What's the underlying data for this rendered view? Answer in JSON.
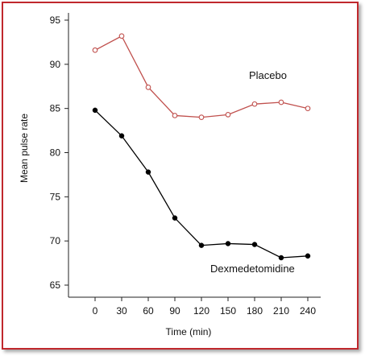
{
  "chart_data": {
    "type": "line",
    "xlabel": "Time (min)",
    "ylabel": "Mean pulse rate",
    "x": [
      0,
      30,
      60,
      90,
      120,
      150,
      180,
      210,
      240
    ],
    "xticks": [
      "0",
      "30",
      "60",
      "90",
      "120",
      "150",
      "180",
      "210",
      "240"
    ],
    "yticks": [
      "65",
      "70",
      "75",
      "80",
      "85",
      "90",
      "95"
    ],
    "ylim": [
      62.5,
      96
    ],
    "grid": false,
    "series": [
      {
        "name": "Placebo",
        "values": [
          91.6,
          93.2,
          87.4,
          84.2,
          84.0,
          84.3,
          85.5,
          85.7,
          85.0
        ],
        "color": "#c0504d",
        "marker": "open-circle"
      },
      {
        "name": "Dexmedetomidine",
        "values": [
          84.8,
          81.9,
          77.8,
          72.6,
          69.5,
          69.7,
          69.6,
          68.1,
          68.3
        ],
        "color": "#000000",
        "marker": "filled-circle"
      }
    ]
  }
}
